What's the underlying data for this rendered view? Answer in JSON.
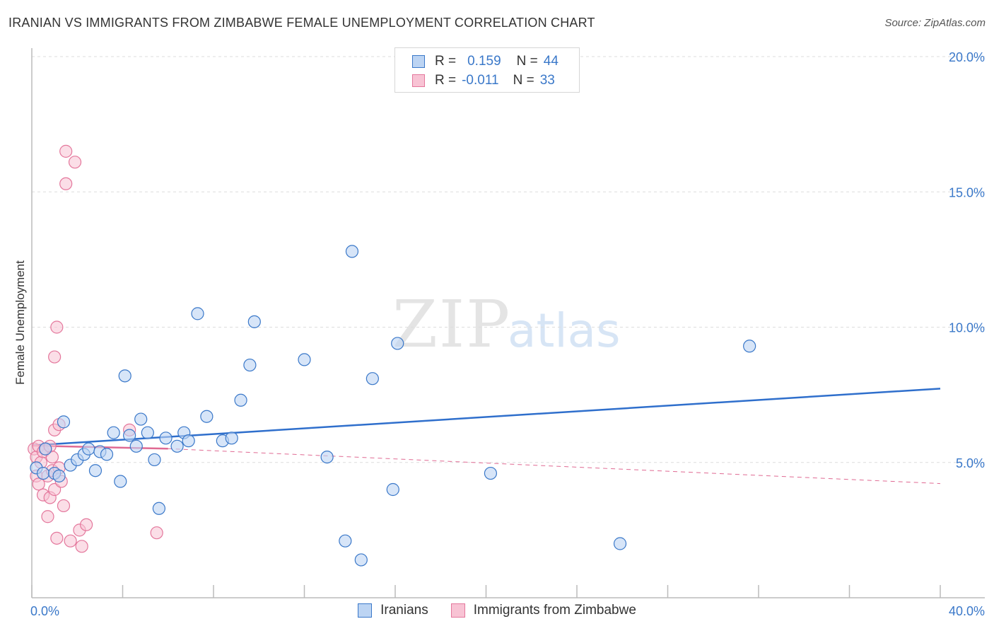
{
  "title": "IRANIAN VS IMMIGRANTS FROM ZIMBABWE FEMALE UNEMPLOYMENT CORRELATION CHART",
  "source": "Source: ZipAtlas.com",
  "colors": {
    "blue": "#3a78c9",
    "blue_fill": "#bcd4f3",
    "blue_line": "#2f6fcc",
    "pink": "#e4779c",
    "pink_fill": "#f8c3d4",
    "pink_line": "#e06a93",
    "grid": "#dddddd",
    "axis": "#bbbbbb"
  },
  "legend": {
    "rows": [
      {
        "r_label": "R =",
        "r_value": "0.159",
        "n_label": "N =",
        "n_value": "44"
      },
      {
        "r_label": "R =",
        "r_value": "-0.011",
        "n_label": "N =",
        "n_value": "33"
      }
    ]
  },
  "bottom_legend": {
    "series1": "Iranians",
    "series2": "Immigrants from Zimbabwe"
  },
  "watermark": {
    "zip": "ZIP",
    "atlas": "atlas"
  },
  "chart_data": {
    "type": "scatter",
    "title": "IRANIAN VS IMMIGRANTS FROM ZIMBABWE FEMALE UNEMPLOYMENT CORRELATION CHART",
    "xlabel": "",
    "ylabel": "Female Unemployment",
    "xlim": [
      0,
      40
    ],
    "ylim": [
      0,
      20
    ],
    "x_tick_labels": [
      {
        "value": 0,
        "label": "0.0%"
      },
      {
        "value": 40,
        "label": "40.0%"
      }
    ],
    "y_tick_labels": [
      {
        "value": 5,
        "label": "5.0%"
      },
      {
        "value": 10,
        "label": "10.0%"
      },
      {
        "value": 15,
        "label": "15.0%"
      },
      {
        "value": 20,
        "label": "20.0%"
      }
    ],
    "x_minor_ticks": [
      0,
      4,
      8,
      12,
      16,
      20,
      24,
      28,
      32,
      36,
      40
    ],
    "series": [
      {
        "name": "Iranians",
        "color": "#3a78c9",
        "points": [
          [
            0.2,
            4.8
          ],
          [
            0.5,
            4.6
          ],
          [
            1.0,
            4.6
          ],
          [
            1.2,
            4.5
          ],
          [
            1.4,
            6.5
          ],
          [
            1.7,
            4.9
          ],
          [
            2.0,
            5.1
          ],
          [
            2.3,
            5.3
          ],
          [
            2.5,
            5.5
          ],
          [
            2.8,
            4.7
          ],
          [
            3.0,
            5.4
          ],
          [
            3.3,
            5.3
          ],
          [
            3.6,
            6.1
          ],
          [
            3.9,
            4.3
          ],
          [
            4.1,
            8.2
          ],
          [
            4.3,
            6.0
          ],
          [
            4.6,
            5.6
          ],
          [
            4.8,
            6.6
          ],
          [
            5.1,
            6.1
          ],
          [
            5.4,
            5.1
          ],
          [
            5.6,
            3.3
          ],
          [
            5.9,
            5.9
          ],
          [
            6.4,
            5.6
          ],
          [
            6.7,
            6.1
          ],
          [
            6.9,
            5.8
          ],
          [
            7.3,
            10.5
          ],
          [
            7.7,
            6.7
          ],
          [
            8.4,
            5.8
          ],
          [
            8.8,
            5.9
          ],
          [
            9.2,
            7.3
          ],
          [
            9.6,
            8.6
          ],
          [
            9.8,
            10.2
          ],
          [
            12.0,
            8.8
          ],
          [
            13.0,
            5.2
          ],
          [
            13.8,
            2.1
          ],
          [
            14.1,
            12.8
          ],
          [
            14.5,
            1.4
          ],
          [
            15.0,
            8.1
          ],
          [
            15.9,
            4.0
          ],
          [
            16.1,
            9.4
          ],
          [
            20.2,
            4.6
          ],
          [
            25.9,
            2.0
          ],
          [
            31.6,
            9.3
          ],
          [
            0.6,
            5.5
          ]
        ],
        "trend": {
          "x": [
            0,
            40
          ],
          "y": [
            5.63,
            7.73
          ]
        }
      },
      {
        "name": "Immigrants from Zimbabwe",
        "color": "#e4779c",
        "points": [
          [
            0.1,
            5.5
          ],
          [
            0.2,
            5.2
          ],
          [
            0.2,
            4.5
          ],
          [
            0.3,
            4.2
          ],
          [
            0.3,
            5.6
          ],
          [
            0.4,
            5.0
          ],
          [
            0.5,
            5.4
          ],
          [
            0.5,
            3.8
          ],
          [
            0.6,
            5.5
          ],
          [
            0.7,
            4.5
          ],
          [
            0.7,
            3.0
          ],
          [
            0.8,
            5.6
          ],
          [
            0.8,
            3.7
          ],
          [
            0.9,
            5.2
          ],
          [
            0.9,
            4.7
          ],
          [
            1.0,
            6.2
          ],
          [
            1.0,
            4.0
          ],
          [
            1.0,
            8.9
          ],
          [
            1.1,
            2.2
          ],
          [
            1.1,
            10.0
          ],
          [
            1.2,
            6.4
          ],
          [
            1.3,
            4.3
          ],
          [
            1.4,
            3.4
          ],
          [
            1.5,
            16.5
          ],
          [
            1.5,
            15.3
          ],
          [
            1.7,
            2.1
          ],
          [
            1.9,
            16.1
          ],
          [
            2.1,
            2.5
          ],
          [
            2.2,
            1.9
          ],
          [
            2.4,
            2.7
          ],
          [
            4.3,
            6.2
          ],
          [
            5.5,
            2.4
          ],
          [
            1.2,
            4.8
          ]
        ],
        "trend_solid": {
          "x": [
            0,
            6
          ],
          "y": [
            5.62,
            5.51
          ]
        },
        "trend_dashed": {
          "x": [
            6,
            40
          ],
          "y": [
            5.51,
            4.22
          ]
        }
      }
    ]
  }
}
